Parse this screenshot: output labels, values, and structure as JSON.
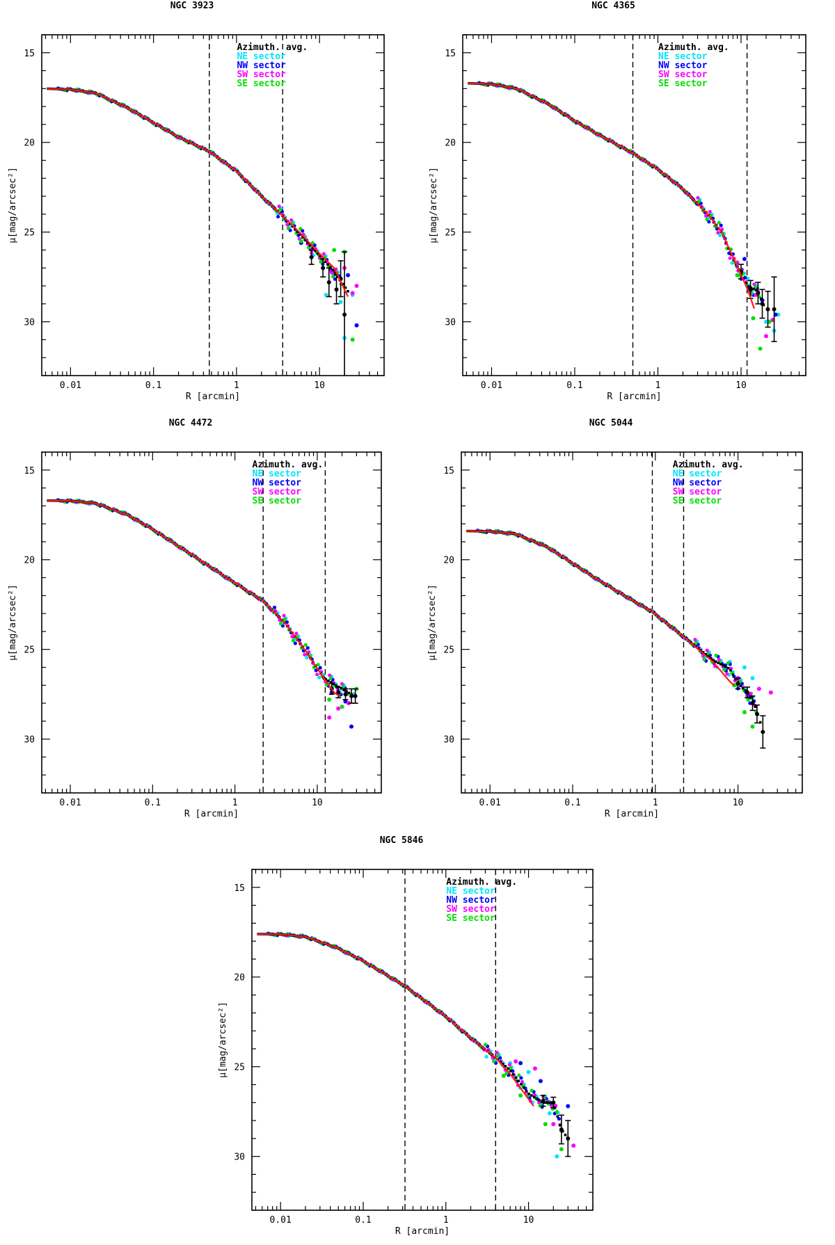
{
  "chart_data": [
    {
      "type": "scatter",
      "title": "NGC 3923",
      "xlabel": "R [arcmin]",
      "ylabel": "μ[mag/arcsec²]",
      "xscale": "log",
      "xlim": [
        0.0045,
        60
      ],
      "ylim": [
        33,
        14
      ],
      "yreversed": true,
      "xticks": [
        0.01,
        0.1,
        1,
        10
      ],
      "xtick_labels": [
        "0.01",
        "0.1",
        "1",
        "10"
      ],
      "yticks": [
        15,
        20,
        25,
        30
      ],
      "ytick_labels": [
        "15",
        "20",
        "25",
        "30"
      ],
      "vlines": [
        0.47,
        3.6
      ],
      "legend": [
        "Azimuth. avg.",
        "NE sector",
        "NW sector",
        "SW sector",
        "SE sector"
      ],
      "profile": [
        [
          0.005,
          17.0
        ],
        [
          0.01,
          17.05
        ],
        [
          0.02,
          17.25
        ],
        [
          0.05,
          18.1
        ],
        [
          0.1,
          18.9
        ],
        [
          0.2,
          19.7
        ],
        [
          0.47,
          20.5
        ],
        [
          1.0,
          21.6
        ],
        [
          2.0,
          23.0
        ],
        [
          3.6,
          24.1
        ],
        [
          6,
          25.2
        ],
        [
          10,
          26.3
        ],
        [
          15,
          27.2
        ],
        [
          22,
          28.3
        ]
      ],
      "model": [
        [
          0.005,
          17.0
        ],
        [
          0.01,
          17.05
        ],
        [
          0.02,
          17.25
        ],
        [
          0.05,
          18.1
        ],
        [
          0.1,
          18.9
        ],
        [
          0.2,
          19.7
        ],
        [
          0.47,
          20.5
        ],
        [
          1.0,
          21.6
        ],
        [
          2.0,
          23.0
        ],
        [
          3.6,
          24.1
        ],
        [
          6,
          25.1
        ],
        [
          10,
          26.2
        ],
        [
          15,
          27.0
        ],
        [
          22,
          28.6
        ]
      ],
      "errorbars": [
        [
          8,
          26.4,
          0.4
        ],
        [
          11,
          27.0,
          0.5
        ],
        [
          13,
          27.8,
          0.8
        ],
        [
          16,
          28.2,
          0.8
        ],
        [
          18,
          27.6,
          1.0
        ],
        [
          20,
          29.6,
          3.5
        ]
      ],
      "sectors": {
        "NE": [
          [
            12,
            28.5
          ],
          [
            18,
            28.9
          ],
          [
            20,
            30.9
          ],
          [
            25,
            28.5
          ]
        ],
        "NW": [
          [
            6,
            25.6
          ],
          [
            10,
            26.3
          ],
          [
            15,
            27.2
          ],
          [
            22,
            27.4
          ],
          [
            28,
            30.2
          ]
        ],
        "SW": [
          [
            8,
            26.0
          ],
          [
            14,
            27.2
          ],
          [
            20,
            27.0
          ],
          [
            25,
            28.4
          ],
          [
            28,
            28.0
          ]
        ],
        "SE": [
          [
            6,
            25.5
          ],
          [
            10,
            26.3
          ],
          [
            15,
            26.0
          ],
          [
            20,
            26.1
          ],
          [
            25,
            31.0
          ]
        ]
      }
    },
    {
      "type": "scatter",
      "title": "NGC 4365",
      "xlabel": "R [arcmin]",
      "ylabel": "μ[mag/arcsec²]",
      "xscale": "log",
      "xlim": [
        0.0045,
        60
      ],
      "ylim": [
        33,
        14
      ],
      "yreversed": true,
      "xticks": [
        0.01,
        0.1,
        1,
        10
      ],
      "xtick_labels": [
        "0.01",
        "0.1",
        "1",
        "10"
      ],
      "yticks": [
        15,
        20,
        25,
        30
      ],
      "ytick_labels": [
        "15",
        "20",
        "25",
        "30"
      ],
      "vlines": [
        0.5,
        11.8
      ],
      "legend": [
        "Azimuth. avg.",
        "NE sector",
        "NW sector",
        "SW sector",
        "SE sector"
      ],
      "profile": [
        [
          0.005,
          16.7
        ],
        [
          0.01,
          16.75
        ],
        [
          0.02,
          17.0
        ],
        [
          0.05,
          17.9
        ],
        [
          0.1,
          18.8
        ],
        [
          0.2,
          19.6
        ],
        [
          0.5,
          20.6
        ],
        [
          1.0,
          21.5
        ],
        [
          2.0,
          22.6
        ],
        [
          4.0,
          24.0
        ],
        [
          6,
          25.1
        ],
        [
          8,
          26.5
        ],
        [
          12,
          28.0
        ],
        [
          16,
          28.3
        ],
        [
          20,
          29.4
        ]
      ],
      "model": [
        [
          0.005,
          16.7
        ],
        [
          0.01,
          16.75
        ],
        [
          0.02,
          17.0
        ],
        [
          0.05,
          17.9
        ],
        [
          0.1,
          18.8
        ],
        [
          0.2,
          19.6
        ],
        [
          0.5,
          20.6
        ],
        [
          1.0,
          21.5
        ],
        [
          2.0,
          22.6
        ],
        [
          4.0,
          24.0
        ],
        [
          6,
          25.1
        ],
        [
          8,
          26.4
        ],
        [
          12,
          28.2
        ],
        [
          15,
          29.5
        ]
      ],
      "errorbars": [
        [
          10,
          27.2,
          0.4
        ],
        [
          13,
          28.2,
          0.5
        ],
        [
          16,
          28.4,
          0.6
        ],
        [
          18,
          29.0,
          0.8
        ],
        [
          21,
          29.3,
          1.0
        ],
        [
          25,
          29.3,
          1.8
        ]
      ],
      "sectors": {
        "NE": [
          [
            12,
            27.6
          ],
          [
            20,
            30.0
          ],
          [
            25,
            30.5
          ],
          [
            28,
            29.6
          ]
        ],
        "NW": [
          [
            11,
            26.5
          ],
          [
            18,
            28.8
          ],
          [
            26,
            29.6
          ]
        ],
        "SW": [
          [
            9,
            26.7
          ],
          [
            15,
            28.5
          ],
          [
            20,
            30.8
          ],
          [
            24,
            29.9
          ]
        ],
        "SE": [
          [
            9,
            27.4
          ],
          [
            14,
            29.8
          ],
          [
            17,
            31.5
          ],
          [
            22,
            30.0
          ]
        ]
      }
    },
    {
      "type": "scatter",
      "title": "NGC 4472",
      "xlabel": "R [arcmin]",
      "ylabel": "μ[mag/arcsec²]",
      "xscale": "log",
      "xlim": [
        0.0045,
        60
      ],
      "ylim": [
        33,
        14
      ],
      "yreversed": true,
      "xticks": [
        0.01,
        0.1,
        1,
        10
      ],
      "xtick_labels": [
        "0.01",
        "0.1",
        "1",
        "10"
      ],
      "yticks": [
        15,
        20,
        25,
        30
      ],
      "ytick_labels": [
        "15",
        "20",
        "25",
        "30"
      ],
      "vlines": [
        2.2,
        12.5
      ],
      "legend": [
        "Azimuth. avg.",
        "NE sector",
        "NW sector",
        "SW sector",
        "SE sector"
      ],
      "profile": [
        [
          0.005,
          16.7
        ],
        [
          0.01,
          16.72
        ],
        [
          0.02,
          16.85
        ],
        [
          0.05,
          17.5
        ],
        [
          0.1,
          18.3
        ],
        [
          0.2,
          19.2
        ],
        [
          0.5,
          20.4
        ],
        [
          1.0,
          21.3
        ],
        [
          2.2,
          22.3
        ],
        [
          4.0,
          23.5
        ],
        [
          7,
          25.0
        ],
        [
          12,
          26.6
        ],
        [
          20,
          27.2
        ],
        [
          28,
          27.6
        ]
      ],
      "model": [
        [
          0.005,
          16.7
        ],
        [
          0.01,
          16.72
        ],
        [
          0.02,
          16.85
        ],
        [
          0.05,
          17.5
        ],
        [
          0.1,
          18.3
        ],
        [
          0.2,
          19.2
        ],
        [
          0.5,
          20.4
        ],
        [
          1.0,
          21.3
        ],
        [
          2.2,
          22.3
        ],
        [
          4.0,
          23.5
        ],
        [
          7,
          25.0
        ],
        [
          12,
          26.6
        ],
        [
          16,
          27.4
        ],
        [
          20,
          27.7
        ]
      ],
      "errorbars": [
        [
          15,
          27.2,
          0.3
        ],
        [
          18,
          27.4,
          0.3
        ],
        [
          22,
          27.5,
          0.3
        ],
        [
          26,
          27.6,
          0.4
        ],
        [
          29,
          27.6,
          0.4
        ]
      ],
      "sectors": {
        "NE": [
          [
            16,
            27.0
          ],
          [
            22,
            27.3
          ],
          [
            28,
            27.5
          ]
        ],
        "NW": [
          [
            15,
            27.4
          ],
          [
            22,
            27.9
          ],
          [
            26,
            29.3
          ]
        ],
        "SW": [
          [
            14,
            28.8
          ],
          [
            18,
            28.3
          ],
          [
            24,
            28.0
          ]
        ],
        "SE": [
          [
            14,
            27.8
          ],
          [
            20,
            28.2
          ],
          [
            30,
            27.2
          ]
        ]
      }
    },
    {
      "type": "scatter",
      "title": "NGC 5044",
      "xlabel": "R [arcmin]",
      "ylabel": "μ[mag/arcsec²]",
      "xscale": "log",
      "xlim": [
        0.0045,
        60
      ],
      "ylim": [
        33,
        14
      ],
      "yreversed": true,
      "xticks": [
        0.01,
        0.1,
        1,
        10
      ],
      "xtick_labels": [
        "0.01",
        "0.1",
        "1",
        "10"
      ],
      "yticks": [
        15,
        20,
        25,
        30
      ],
      "ytick_labels": [
        "15",
        "20",
        "25",
        "30"
      ],
      "vlines": [
        0.92,
        2.2
      ],
      "legend": [
        "Azimuth. avg.",
        "NE sector",
        "NW sector",
        "SW sector",
        "SE sector"
      ],
      "profile": [
        [
          0.005,
          18.4
        ],
        [
          0.01,
          18.42
        ],
        [
          0.02,
          18.55
        ],
        [
          0.05,
          19.3
        ],
        [
          0.1,
          20.2
        ],
        [
          0.2,
          21.1
        ],
        [
          0.5,
          22.2
        ],
        [
          0.92,
          22.9
        ],
        [
          2.2,
          24.3
        ],
        [
          5,
          25.6
        ],
        [
          8,
          26.1
        ],
        [
          10,
          26.9
        ],
        [
          13,
          27.4
        ],
        [
          16,
          28.1
        ],
        [
          20,
          29.5
        ]
      ],
      "model": [
        [
          0.005,
          18.4
        ],
        [
          0.01,
          18.42
        ],
        [
          0.02,
          18.55
        ],
        [
          0.05,
          19.3
        ],
        [
          0.1,
          20.2
        ],
        [
          0.2,
          21.1
        ],
        [
          0.5,
          22.2
        ],
        [
          0.92,
          22.9
        ],
        [
          2.2,
          24.3
        ],
        [
          5,
          25.7
        ],
        [
          8,
          26.8
        ],
        [
          9,
          27.0
        ]
      ],
      "errorbars": [
        [
          10,
          26.9,
          0.3
        ],
        [
          13,
          27.4,
          0.3
        ],
        [
          15,
          28.0,
          0.4
        ],
        [
          17,
          28.6,
          0.5
        ],
        [
          20,
          29.6,
          0.9
        ]
      ],
      "sectors": {
        "NE": [
          [
            8,
            25.7
          ],
          [
            12,
            26.0
          ],
          [
            15,
            26.6
          ]
        ],
        "NW": [
          [
            7,
            25.9
          ],
          [
            10,
            26.6
          ],
          [
            14,
            27.6
          ]
        ],
        "SW": [
          [
            10,
            26.6
          ],
          [
            18,
            27.2
          ],
          [
            25,
            27.4
          ]
        ],
        "SE": [
          [
            9,
            27.0
          ],
          [
            12,
            28.5
          ],
          [
            15,
            29.3
          ]
        ]
      }
    },
    {
      "type": "scatter",
      "title": "NGC 5846",
      "xlabel": "R [arcmin]",
      "ylabel": "μ[mag/arcsec²]",
      "xscale": "log",
      "xlim": [
        0.0045,
        60
      ],
      "ylim": [
        33,
        14
      ],
      "yreversed": true,
      "xticks": [
        0.01,
        0.1,
        1,
        10
      ],
      "xtick_labels": [
        "0.01",
        "0.1",
        "1",
        "10"
      ],
      "yticks": [
        15,
        20,
        25,
        30
      ],
      "ytick_labels": [
        "15",
        "20",
        "25",
        "30"
      ],
      "vlines": [
        0.32,
        4.0
      ],
      "legend": [
        "Azimuth. avg.",
        "NE sector",
        "NW sector",
        "SW sector",
        "SE sector"
      ],
      "profile": [
        [
          0.005,
          17.6
        ],
        [
          0.01,
          17.62
        ],
        [
          0.02,
          17.75
        ],
        [
          0.05,
          18.4
        ],
        [
          0.1,
          19.1
        ],
        [
          0.32,
          20.5
        ],
        [
          1.0,
          22.2
        ],
        [
          2.0,
          23.4
        ],
        [
          4.0,
          24.5
        ],
        [
          6,
          25.2
        ],
        [
          10,
          26.5
        ],
        [
          15,
          27.0
        ],
        [
          20,
          27.0
        ],
        [
          25,
          28.5
        ],
        [
          30,
          29.0
        ]
      ],
      "model": [
        [
          0.005,
          17.6
        ],
        [
          0.01,
          17.62
        ],
        [
          0.02,
          17.75
        ],
        [
          0.05,
          18.4
        ],
        [
          0.1,
          19.1
        ],
        [
          0.32,
          20.5
        ],
        [
          1.0,
          22.2
        ],
        [
          2.0,
          23.4
        ],
        [
          4.0,
          24.5
        ],
        [
          6,
          25.4
        ],
        [
          10,
          26.8
        ],
        [
          12,
          27.3
        ]
      ],
      "errorbars": [
        [
          15,
          26.9,
          0.3
        ],
        [
          20,
          27.0,
          0.3
        ],
        [
          25,
          28.5,
          0.8
        ],
        [
          30,
          29.0,
          1.0
        ]
      ],
      "sectors": {
        "NE": [
          [
            6,
            24.8
          ],
          [
            10,
            25.3
          ],
          [
            18,
            27.6
          ],
          [
            22,
            30.0
          ]
        ],
        "NW": [
          [
            8,
            24.8
          ],
          [
            14,
            25.8
          ],
          [
            20,
            27.3
          ],
          [
            30,
            27.2
          ]
        ],
        "SW": [
          [
            7,
            24.7
          ],
          [
            12,
            25.1
          ],
          [
            20,
            28.2
          ],
          [
            35,
            29.4
          ]
        ],
        "SE": [
          [
            5,
            25.5
          ],
          [
            8,
            26.6
          ],
          [
            16,
            28.2
          ],
          [
            25,
            29.6
          ]
        ]
      }
    }
  ],
  "colors": {
    "profile": "#000000",
    "model": "#ff1a1a",
    "NE": "#00e5ff",
    "NW": "#0000ff",
    "SW": "#ff00ff",
    "SE": "#00e000"
  }
}
